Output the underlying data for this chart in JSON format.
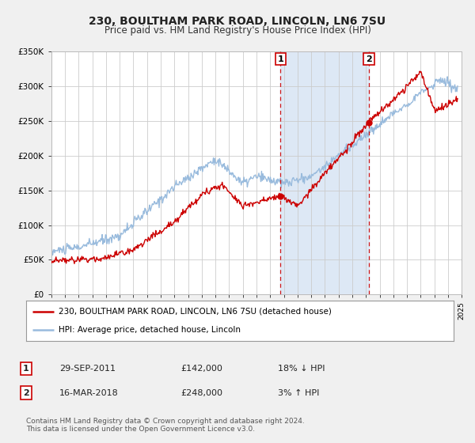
{
  "title": "230, BOULTHAM PARK ROAD, LINCOLN, LN6 7SU",
  "subtitle": "Price paid vs. HM Land Registry's House Price Index (HPI)",
  "property_label": "230, BOULTHAM PARK ROAD, LINCOLN, LN6 7SU (detached house)",
  "hpi_label": "HPI: Average price, detached house, Lincoln",
  "property_color": "#cc0000",
  "hpi_color": "#99bbdd",
  "marker1_date": 2011.75,
  "marker1_value": 142000,
  "marker1_text": "29-SEP-2011",
  "marker1_pct": "18% ↓ HPI",
  "marker2_date": 2018.21,
  "marker2_value": 248000,
  "marker2_text": "16-MAR-2018",
  "marker2_pct": "3% ↑ HPI",
  "ymin": 0,
  "ymax": 350000,
  "xmin": 1995,
  "xmax": 2025,
  "background_color": "#f0f0f0",
  "plot_bg_color": "#ffffff",
  "grid_color": "#cccccc",
  "footer_text": "Contains HM Land Registry data © Crown copyright and database right 2024.\nThis data is licensed under the Open Government Licence v3.0.",
  "legend_border_color": "#999999",
  "annotation_box_color": "#cc0000",
  "hatch_color": "#cccccc",
  "span_color": "#dde8f5"
}
